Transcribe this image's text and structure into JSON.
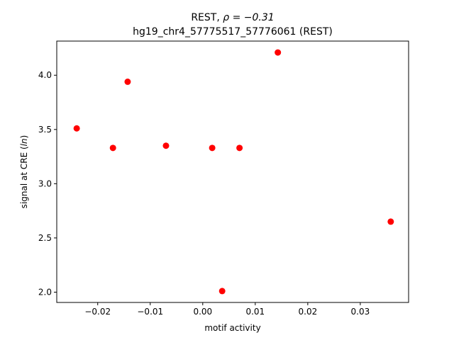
{
  "chart_data": {
    "type": "scatter",
    "title_prefix": "REST, ",
    "title_rho": "ρ = −0.31",
    "subtitle": "hg19_chr4_57775517_57776061 (REST)",
    "xlabel": "motif activity",
    "ylabel_prefix": "signal at CRE (",
    "ylabel_italic": "ln",
    "ylabel_suffix": ")",
    "xlim": [
      -0.0278,
      0.0392
    ],
    "ylim": [
      1.905,
      4.315
    ],
    "xticks": [
      -0.02,
      -0.01,
      0.0,
      0.01,
      0.02,
      0.03
    ],
    "xtick_labels": [
      "−0.02",
      "−0.01",
      "0.00",
      "0.01",
      "0.02",
      "0.03"
    ],
    "yticks": [
      2.0,
      2.5,
      3.0,
      3.5,
      4.0
    ],
    "ytick_labels": [
      "2.0",
      "2.5",
      "3.0",
      "3.5",
      "4.0"
    ],
    "point_color": "#ff0000",
    "points": [
      {
        "x": -0.024,
        "y": 3.51
      },
      {
        "x": -0.0171,
        "y": 3.33
      },
      {
        "x": -0.0143,
        "y": 3.94
      },
      {
        "x": -0.007,
        "y": 3.35
      },
      {
        "x": 0.0018,
        "y": 3.33
      },
      {
        "x": 0.0037,
        "y": 2.01
      },
      {
        "x": 0.007,
        "y": 3.33
      },
      {
        "x": 0.0143,
        "y": 4.21
      },
      {
        "x": 0.0358,
        "y": 2.65
      }
    ],
    "grid": false,
    "legend": "none"
  }
}
